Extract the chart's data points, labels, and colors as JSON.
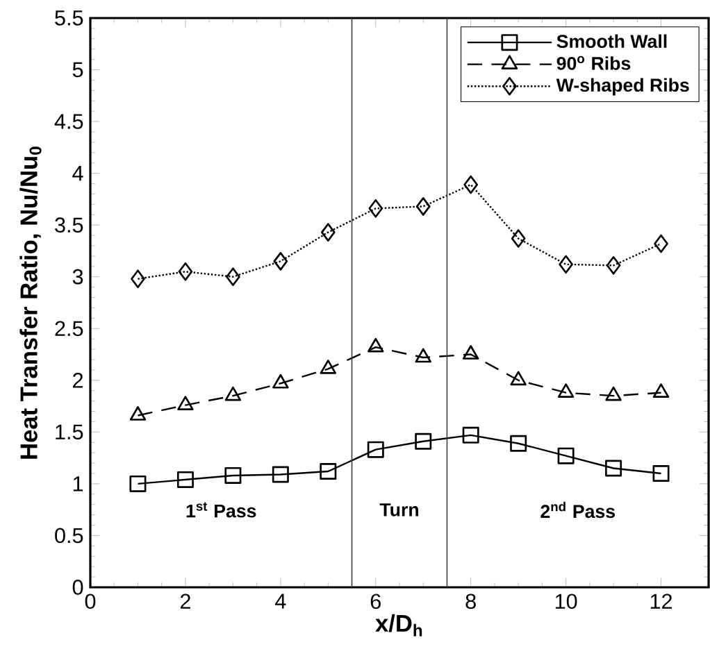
{
  "chart_data": {
    "type": "line",
    "xlabel": "x/D$_{h}$",
    "ylabel": "Heat Transfer Ratio, Nu/Nu$_{0}$",
    "x": [
      1,
      2,
      3,
      4,
      5,
      6,
      7,
      8,
      9,
      10,
      11,
      12
    ],
    "series": [
      {
        "name": "Smooth Wall",
        "color": "#000000",
        "marker": "square",
        "line_style": "solid",
        "values": [
          1.0,
          1.04,
          1.08,
          1.09,
          1.12,
          1.33,
          1.41,
          1.47,
          1.39,
          1.27,
          1.15,
          1.1
        ]
      },
      {
        "name": "90$^{o}$ Ribs",
        "color": "#000000",
        "marker": "triangle",
        "line_style": "dashed",
        "values": [
          1.66,
          1.76,
          1.85,
          1.97,
          2.11,
          2.32,
          2.22,
          2.25,
          2.0,
          1.88,
          1.85,
          1.88
        ]
      },
      {
        "name": "W-shaped Ribs",
        "color": "#000000",
        "marker": "diamond",
        "line_style": "dotted",
        "values": [
          2.98,
          3.05,
          3.0,
          3.15,
          3.43,
          3.66,
          3.68,
          3.89,
          3.37,
          3.12,
          3.11,
          3.32
        ]
      }
    ],
    "xlim": [
      0,
      13
    ],
    "xticks": [
      0,
      2,
      4,
      6,
      8,
      10,
      12
    ],
    "ylim": [
      0,
      5.5
    ],
    "yticks": [
      0,
      0.5,
      1,
      1.5,
      2,
      2.5,
      3,
      3.5,
      4,
      4.5,
      5,
      5.5
    ],
    "ref_lines": [
      {
        "axis": "x",
        "value": 5.5,
        "color": "#404040"
      },
      {
        "axis": "x",
        "value": 7.5,
        "color": "#404040"
      }
    ],
    "annotations": [
      "1$^{st}$ Pass",
      "Turn",
      "2$^{nd}$ Pass"
    ],
    "legend": "top right",
    "grid": false
  }
}
